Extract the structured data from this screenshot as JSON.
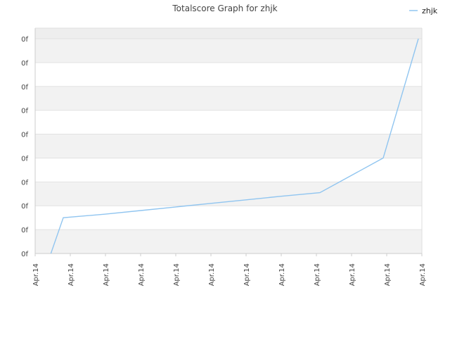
{
  "chart_data": {
    "type": "line",
    "title": "Totalscore Graph for zhjk",
    "xlabel": "",
    "ylabel": "",
    "x_tick_labels": [
      "Apr.14",
      "Apr.14",
      "Apr.14",
      "Apr.14",
      "Apr.14",
      "Apr.14",
      "Apr.14",
      "Apr.14",
      "Apr.14",
      "Apr.14",
      "Apr.14",
      "Apr.14"
    ],
    "y_tick_labels": [
      "0f",
      "0f",
      "0f",
      "0f",
      "0f",
      "0f",
      "0f",
      "0f",
      "0f",
      "0f"
    ],
    "ylim": [
      0,
      9
    ],
    "xlim": [
      0,
      11
    ],
    "grid": true,
    "legend_position": "top-right",
    "series": [
      {
        "name": "zhjk",
        "color": "#90c5f0",
        "x": [
          0.4,
          0.8,
          2,
          3,
          4,
          5,
          6,
          7,
          8.1,
          9.9,
          10.9
        ],
        "y": [
          -0.2,
          1.5,
          1.65,
          1.8,
          1.95,
          2.1,
          2.25,
          2.4,
          2.55,
          4.0,
          9.0
        ]
      }
    ]
  }
}
